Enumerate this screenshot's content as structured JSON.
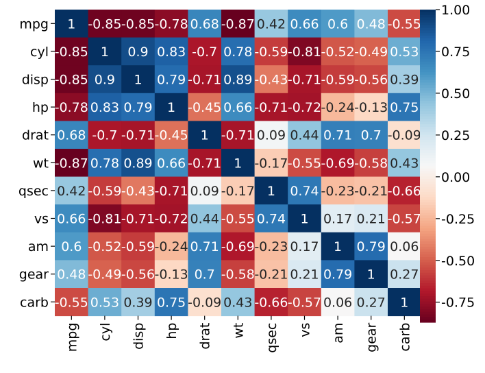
{
  "chart_data": {
    "type": "heatmap",
    "title": "",
    "xlabel": "",
    "ylabel": "",
    "x_labels": [
      "mpg",
      "cyl",
      "disp",
      "hp",
      "drat",
      "wt",
      "qsec",
      "vs",
      "am",
      "gear",
      "carb"
    ],
    "y_labels": [
      "mpg",
      "cyl",
      "disp",
      "hp",
      "drat",
      "wt",
      "qsec",
      "vs",
      "am",
      "gear",
      "carb"
    ],
    "values": [
      [
        1,
        -0.85,
        -0.85,
        -0.78,
        0.68,
        -0.87,
        0.42,
        0.66,
        0.6,
        0.48,
        -0.55
      ],
      [
        -0.85,
        1,
        0.9,
        0.83,
        -0.7,
        0.78,
        -0.59,
        -0.81,
        -0.52,
        -0.49,
        0.53
      ],
      [
        -0.85,
        0.9,
        1,
        0.79,
        -0.71,
        0.89,
        -0.43,
        -0.71,
        -0.59,
        -0.56,
        0.39
      ],
      [
        -0.78,
        0.83,
        0.79,
        1,
        -0.45,
        0.66,
        -0.71,
        -0.72,
        -0.24,
        -0.13,
        0.75
      ],
      [
        0.68,
        -0.7,
        -0.71,
        -0.45,
        1,
        -0.71,
        0.09,
        0.44,
        0.71,
        0.7,
        -0.09
      ],
      [
        -0.87,
        0.78,
        0.89,
        0.66,
        -0.71,
        1,
        -0.17,
        -0.55,
        -0.69,
        -0.58,
        0.43
      ],
      [
        0.42,
        -0.59,
        -0.43,
        -0.71,
        0.09,
        -0.17,
        1,
        0.74,
        -0.23,
        -0.21,
        -0.66
      ],
      [
        0.66,
        -0.81,
        -0.71,
        -0.72,
        0.44,
        -0.55,
        0.74,
        1,
        0.17,
        0.21,
        -0.57
      ],
      [
        0.6,
        -0.52,
        -0.59,
        -0.24,
        0.71,
        -0.69,
        -0.23,
        0.17,
        1,
        0.79,
        0.06
      ],
      [
        0.48,
        -0.49,
        -0.56,
        -0.13,
        0.7,
        -0.58,
        -0.21,
        0.21,
        0.79,
        1,
        0.27
      ],
      [
        -0.55,
        0.53,
        0.39,
        0.75,
        -0.09,
        0.43,
        -0.66,
        -0.57,
        0.06,
        0.27,
        1
      ]
    ],
    "colorbar": {
      "range": [
        -0.87,
        1.0
      ],
      "ticks": [
        1.0,
        0.75,
        0.5,
        0.25,
        0.0,
        -0.25,
        -0.5,
        -0.75
      ],
      "tick_labels": [
        "1.00",
        "0.75",
        "0.50",
        "0.25",
        "0.00",
        "-0.25",
        "-0.50",
        "-0.75"
      ]
    },
    "colormap": "RdBu",
    "colormap_stops": [
      "#67001f",
      "#b2182b",
      "#d6604d",
      "#f4a582",
      "#fddbc7",
      "#f7f7f7",
      "#d1e5f0",
      "#92c5de",
      "#4393c3",
      "#2166ac",
      "#053061"
    ]
  }
}
